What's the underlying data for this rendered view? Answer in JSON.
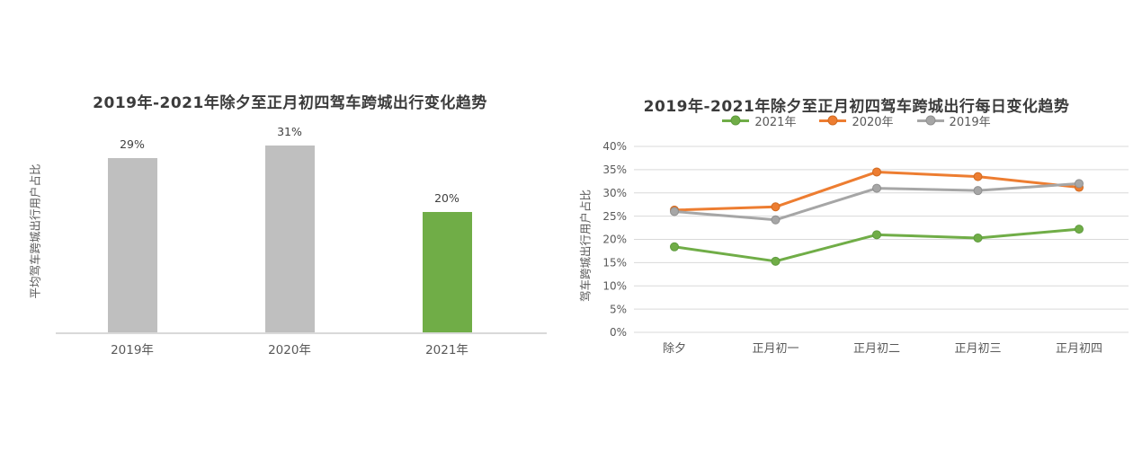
{
  "page": {
    "background": "#ffffff"
  },
  "colors": {
    "grid": "#d9d9d9",
    "axis": "#d9d9d9",
    "title_text": "#3b3b3b",
    "axis_text": "#595959",
    "value_text": "#404040",
    "bar_gray": "#bfbfbf",
    "accent_green": "#70ad47",
    "accent_orange": "#ed7d31",
    "line_gray": "#a6a6a6"
  },
  "chart_data": [
    {
      "type": "bar",
      "title": "2019年-2021年除夕至正月初四驾车跨城出行变化趋势",
      "ylabel": "平均驾车跨城出行用户占比",
      "xlabel": "",
      "categories": [
        "2019年",
        "2020年",
        "2021年"
      ],
      "values": [
        29,
        31,
        20
      ],
      "value_labels": [
        "29%",
        "31%",
        "20%"
      ],
      "bar_colors": [
        "#bfbfbf",
        "#bfbfbf",
        "#70ad47"
      ],
      "ylim": [
        0,
        34
      ],
      "grid": false,
      "y_axis_ticks_visible": false
    },
    {
      "type": "line",
      "title": "2019年-2021年除夕至正月初四驾车跨城出行每日变化趋势",
      "ylabel": "驾车跨城出行用户占比",
      "xlabel": "",
      "categories": [
        "除夕",
        "正月初一",
        "正月初二",
        "正月初三",
        "正月初四"
      ],
      "series": [
        {
          "name": "2021年",
          "color": "#70ad47",
          "marker_edge": "#5e9b3e",
          "values": [
            18.4,
            15.3,
            21.0,
            20.3,
            22.2
          ]
        },
        {
          "name": "2020年",
          "color": "#ed7d31",
          "marker_edge": "#d06a20",
          "values": [
            26.3,
            27.0,
            34.5,
            33.5,
            31.2
          ]
        },
        {
          "name": "2019年",
          "color": "#a6a6a6",
          "marker_edge": "#8f8f8f",
          "values": [
            26.0,
            24.2,
            31.0,
            30.5,
            32.0
          ]
        }
      ],
      "legend": [
        "2021年",
        "2020年",
        "2019年"
      ],
      "legend_position": "top-center",
      "ylim": [
        0,
        40
      ],
      "ytick_step": 5,
      "ytick_labels": [
        "0%",
        "5%",
        "10%",
        "15%",
        "20%",
        "25%",
        "30%",
        "35%",
        "40%"
      ],
      "grid": true
    }
  ]
}
